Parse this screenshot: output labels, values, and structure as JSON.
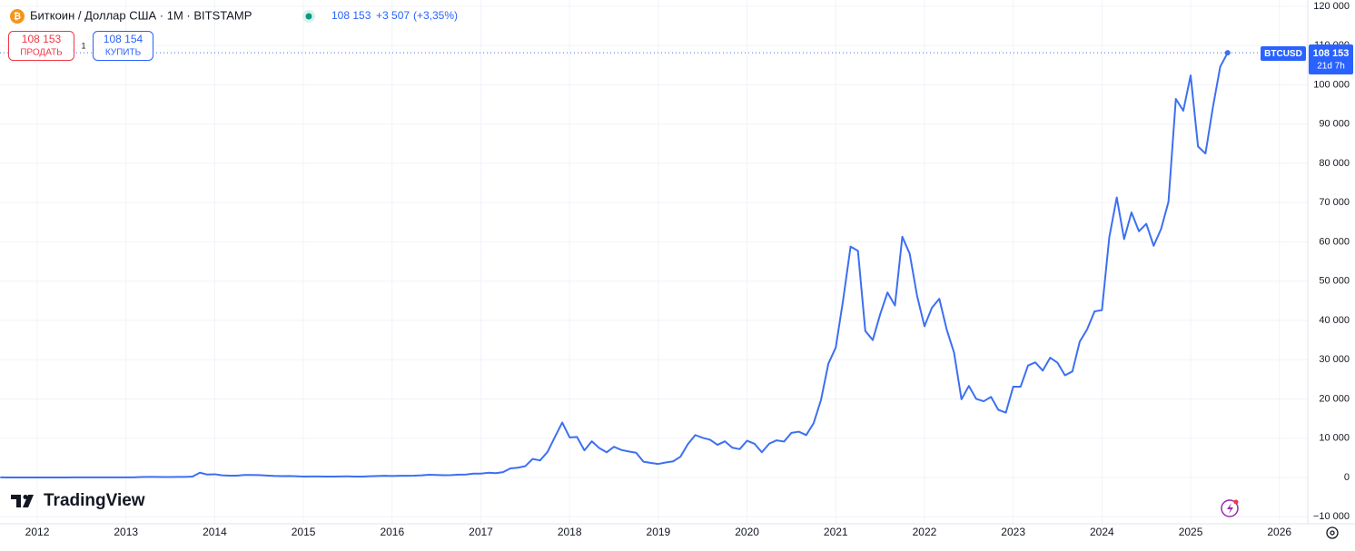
{
  "chart_data": {
    "type": "line",
    "title": "Биткоин / Доллар США · 1M · BITSTAMP",
    "header": {
      "last": "108 153",
      "change": "+3 507",
      "change_pct": "(+3,35%)"
    },
    "sell": {
      "price": "108 153",
      "label": "ПРОДАТЬ"
    },
    "spread": "1",
    "buy": {
      "price": "108 154",
      "label": "КУПИТЬ"
    },
    "price_tag": {
      "symbol": "BTCUSD",
      "price": "108 153",
      "countdown": "21d 7h"
    },
    "brand": "TradingView",
    "color": "#3d6ff2",
    "grid": true,
    "xlim": [
      2011.58,
      2026.32
    ],
    "xticks": [
      2012,
      2013,
      2014,
      2015,
      2016,
      2017,
      2018,
      2019,
      2020,
      2021,
      2022,
      2023,
      2024,
      2025,
      2026
    ],
    "ylim": [
      -11800,
      121600
    ],
    "yticks": [
      {
        "value": -10000,
        "label": "−10 000"
      },
      0,
      {
        "value": 10000,
        "label": "10 000"
      },
      {
        "value": 20000,
        "label": "20 000"
      },
      {
        "value": 30000,
        "label": "30 000"
      },
      {
        "value": 40000,
        "label": "40 000"
      },
      {
        "value": 50000,
        "label": "50 000"
      },
      {
        "value": 60000,
        "label": "60 000"
      },
      {
        "value": 70000,
        "label": "70 000"
      },
      {
        "value": 80000,
        "label": "80 000"
      },
      {
        "value": 90000,
        "label": "90 000"
      },
      {
        "value": 100000,
        "label": "100 000"
      },
      {
        "value": 110000,
        "label": "110 000"
      },
      {
        "value": 120000,
        "label": "120 000"
      }
    ],
    "x": [
      2011.583,
      2011.667,
      2011.75,
      2011.833,
      2011.917,
      2012,
      2012.083,
      2012.167,
      2012.25,
      2012.333,
      2012.417,
      2012.5,
      2012.583,
      2012.667,
      2012.75,
      2012.833,
      2012.917,
      2013,
      2013.083,
      2013.167,
      2013.25,
      2013.333,
      2013.417,
      2013.5,
      2013.583,
      2013.667,
      2013.75,
      2013.833,
      2013.917,
      2014,
      2014.083,
      2014.167,
      2014.25,
      2014.333,
      2014.417,
      2014.5,
      2014.583,
      2014.667,
      2014.75,
      2014.833,
      2014.917,
      2015,
      2015.083,
      2015.167,
      2015.25,
      2015.333,
      2015.417,
      2015.5,
      2015.583,
      2015.667,
      2015.75,
      2015.833,
      2015.917,
      2016,
      2016.083,
      2016.167,
      2016.25,
      2016.333,
      2016.417,
      2016.5,
      2016.583,
      2016.667,
      2016.75,
      2016.833,
      2016.917,
      2017,
      2017.083,
      2017.167,
      2017.25,
      2017.333,
      2017.417,
      2017.5,
      2017.583,
      2017.667,
      2017.75,
      2017.833,
      2017.917,
      2018,
      2018.083,
      2018.167,
      2018.25,
      2018.333,
      2018.417,
      2018.5,
      2018.583,
      2018.667,
      2018.75,
      2018.833,
      2018.917,
      2019,
      2019.083,
      2019.167,
      2019.25,
      2019.333,
      2019.417,
      2019.5,
      2019.583,
      2019.667,
      2019.75,
      2019.833,
      2019.917,
      2020,
      2020.083,
      2020.167,
      2020.25,
      2020.333,
      2020.417,
      2020.5,
      2020.583,
      2020.667,
      2020.75,
      2020.833,
      2020.917,
      2021,
      2021.083,
      2021.167,
      2021.25,
      2021.333,
      2021.417,
      2021.5,
      2021.583,
      2021.667,
      2021.75,
      2021.833,
      2021.917,
      2022,
      2022.083,
      2022.167,
      2022.25,
      2022.333,
      2022.417,
      2022.5,
      2022.583,
      2022.667,
      2022.75,
      2022.833,
      2022.917,
      2023,
      2023.083,
      2023.167,
      2023.25,
      2023.333,
      2023.417,
      2023.5,
      2023.583,
      2023.667,
      2023.75,
      2023.833,
      2023.917,
      2024,
      2024.083,
      2024.167,
      2024.25,
      2024.333,
      2024.417,
      2024.5,
      2024.583,
      2024.667,
      2024.75,
      2024.833,
      2024.917,
      2025,
      2025.083,
      2025.167,
      2025.25,
      2025.333,
      2025.417
    ],
    "values": [
      8,
      5,
      3,
      3,
      5,
      6,
      5,
      5,
      5,
      5,
      7,
      9,
      10,
      12,
      11,
      13,
      14,
      20,
      33,
      93,
      139,
      129,
      97,
      106,
      135,
      141,
      211,
      1205,
      732,
      815,
      550,
      445,
      448,
      628,
      640,
      585,
      478,
      386,
      338,
      378,
      320,
      217,
      254,
      244,
      236,
      230,
      263,
      284,
      230,
      236,
      314,
      377,
      430,
      368,
      437,
      416,
      448,
      531,
      673,
      624,
      573,
      609,
      700,
      742,
      963,
      970,
      1190,
      1080,
      1350,
      2300,
      2480,
      2875,
      4700,
      4340,
      6460,
      10230,
      14000,
      10200,
      10300,
      6900,
      9200,
      7500,
      6400,
      7800,
      7000,
      6600,
      6300,
      4000,
      3700,
      3440,
      3800,
      4100,
      5300,
      8500,
      10800,
      10100,
      9600,
      8300,
      9200,
      7600,
      7200,
      9350,
      8600,
      6400,
      8600,
      9450,
      9140,
      11350,
      11650,
      10780,
      13800,
      19700,
      29000,
      33100,
      45200,
      58800,
      57700,
      37300,
      35000,
      41500,
      47100,
      43800,
      61300,
      57000,
      46200,
      38500,
      43200,
      45500,
      37700,
      31800,
      19900,
      23300,
      20000,
      19400,
      20500,
      17200,
      16500,
      23100,
      23100,
      28500,
      29300,
      27200,
      30500,
      29200,
      26000,
      27000,
      34600,
      37700,
      42300,
      42600,
      61200,
      71300,
      60700,
      67500,
      62700,
      64600,
      59000,
      63300,
      70200,
      96400,
      93400,
      102400,
      84300,
      82500,
      94200,
      104600,
      108153
    ]
  }
}
